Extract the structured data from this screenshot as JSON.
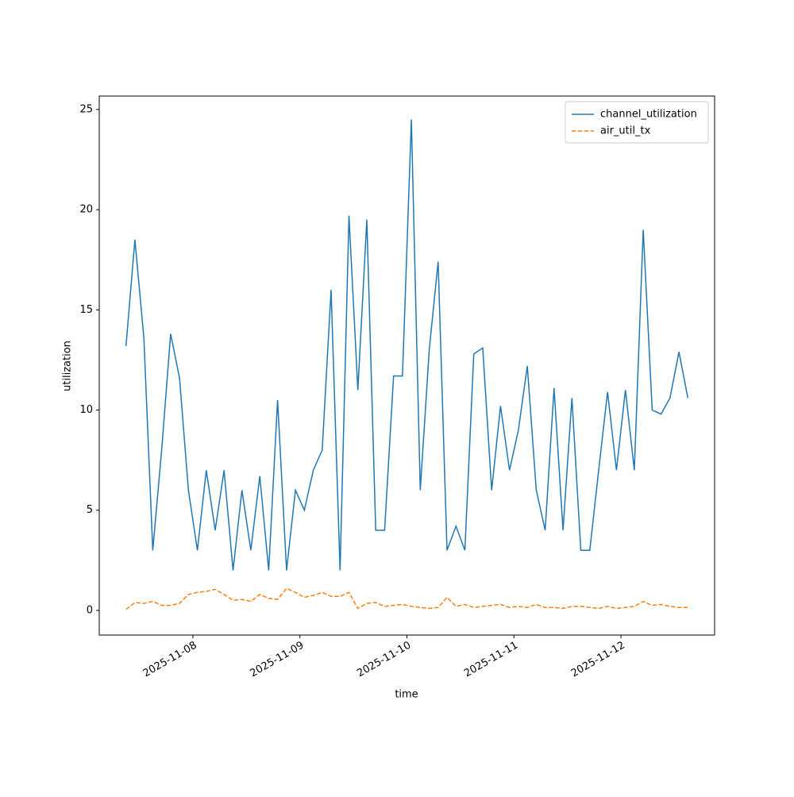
{
  "chart_data": {
    "type": "line",
    "x_label": "time",
    "y_label": "utilization",
    "x": [
      "2025-11-07T09:00",
      "2025-11-07T11:00",
      "2025-11-07T13:00",
      "2025-11-07T15:00",
      "2025-11-07T17:00",
      "2025-11-07T19:00",
      "2025-11-07T21:00",
      "2025-11-07T23:00",
      "2025-11-08T01:00",
      "2025-11-08T03:00",
      "2025-11-08T05:00",
      "2025-11-08T07:00",
      "2025-11-08T09:00",
      "2025-11-08T11:00",
      "2025-11-08T13:00",
      "2025-11-08T15:00",
      "2025-11-08T17:00",
      "2025-11-08T19:00",
      "2025-11-08T21:00",
      "2025-11-08T23:00",
      "2025-11-09T01:00",
      "2025-11-09T03:00",
      "2025-11-09T05:00",
      "2025-11-09T07:00",
      "2025-11-09T09:00",
      "2025-11-09T11:00",
      "2025-11-09T13:00",
      "2025-11-09T15:00",
      "2025-11-09T17:00",
      "2025-11-09T19:00",
      "2025-11-09T21:00",
      "2025-11-09T23:00",
      "2025-11-10T01:00",
      "2025-11-10T03:00",
      "2025-11-10T05:00",
      "2025-11-10T07:00",
      "2025-11-10T09:00",
      "2025-11-10T11:00",
      "2025-11-10T13:00",
      "2025-11-10T15:00",
      "2025-11-10T17:00",
      "2025-11-10T19:00",
      "2025-11-10T21:00",
      "2025-11-10T23:00",
      "2025-11-11T01:00",
      "2025-11-11T03:00",
      "2025-11-11T05:00",
      "2025-11-11T07:00",
      "2025-11-11T09:00",
      "2025-11-11T11:00",
      "2025-11-11T13:00",
      "2025-11-11T15:00",
      "2025-11-11T17:00",
      "2025-11-11T19:00",
      "2025-11-11T21:00",
      "2025-11-11T23:00",
      "2025-11-12T01:00",
      "2025-11-12T03:00",
      "2025-11-12T05:00",
      "2025-11-12T07:00",
      "2025-11-12T09:00",
      "2025-11-12T11:00",
      "2025-11-12T13:00",
      "2025-11-12T15:00"
    ],
    "series": [
      {
        "name": "channel_utilization",
        "color": "#1f77b4",
        "dash": "solid",
        "values": [
          13.2,
          18.5,
          13.6,
          3,
          8,
          13.8,
          11.6,
          6,
          3,
          7,
          4,
          7,
          2,
          6,
          3,
          6.7,
          2,
          10.5,
          2,
          6,
          5,
          7,
          8,
          16,
          2,
          19.7,
          11,
          19.5,
          4,
          4,
          11.7,
          11.7,
          24.5,
          6,
          13,
          17.4,
          3,
          4.2,
          3,
          12.8,
          13.1,
          6,
          10.2,
          7,
          9,
          12.2,
          6,
          4,
          11.1,
          4,
          10.6,
          3,
          3,
          7,
          10.9,
          7,
          11,
          7,
          19,
          10,
          9.8,
          10.6,
          12.9,
          10.6
        ]
      },
      {
        "name": "air_util_tx",
        "color": "#ff7f0e",
        "dash": "dashed",
        "values": [
          0.05,
          0.4,
          0.35,
          0.45,
          0.25,
          0.25,
          0.35,
          0.8,
          0.9,
          0.95,
          1.05,
          0.8,
          0.5,
          0.55,
          0.45,
          0.8,
          0.6,
          0.55,
          1.1,
          0.9,
          0.65,
          0.75,
          0.9,
          0.7,
          0.7,
          0.9,
          0.1,
          0.35,
          0.4,
          0.2,
          0.25,
          0.3,
          0.2,
          0.15,
          0.1,
          0.15,
          0.65,
          0.2,
          0.3,
          0.15,
          0.2,
          0.25,
          0.3,
          0.15,
          0.2,
          0.15,
          0.3,
          0.15,
          0.15,
          0.1,
          0.2,
          0.2,
          0.15,
          0.1,
          0.2,
          0.1,
          0.15,
          0.2,
          0.45,
          0.25,
          0.3,
          0.2,
          0.15,
          0.15
        ]
      }
    ],
    "xlim": [
      "2025-11-07T03:00",
      "2025-11-12T21:00"
    ],
    "xticks": [
      "2025-11-08",
      "2025-11-09",
      "2025-11-10",
      "2025-11-11",
      "2025-11-12"
    ],
    "ylim": [
      -1.23,
      25.67
    ],
    "yticks": [
      0,
      5,
      10,
      15,
      20,
      25
    ],
    "grid": false,
    "legend": "upper right"
  }
}
